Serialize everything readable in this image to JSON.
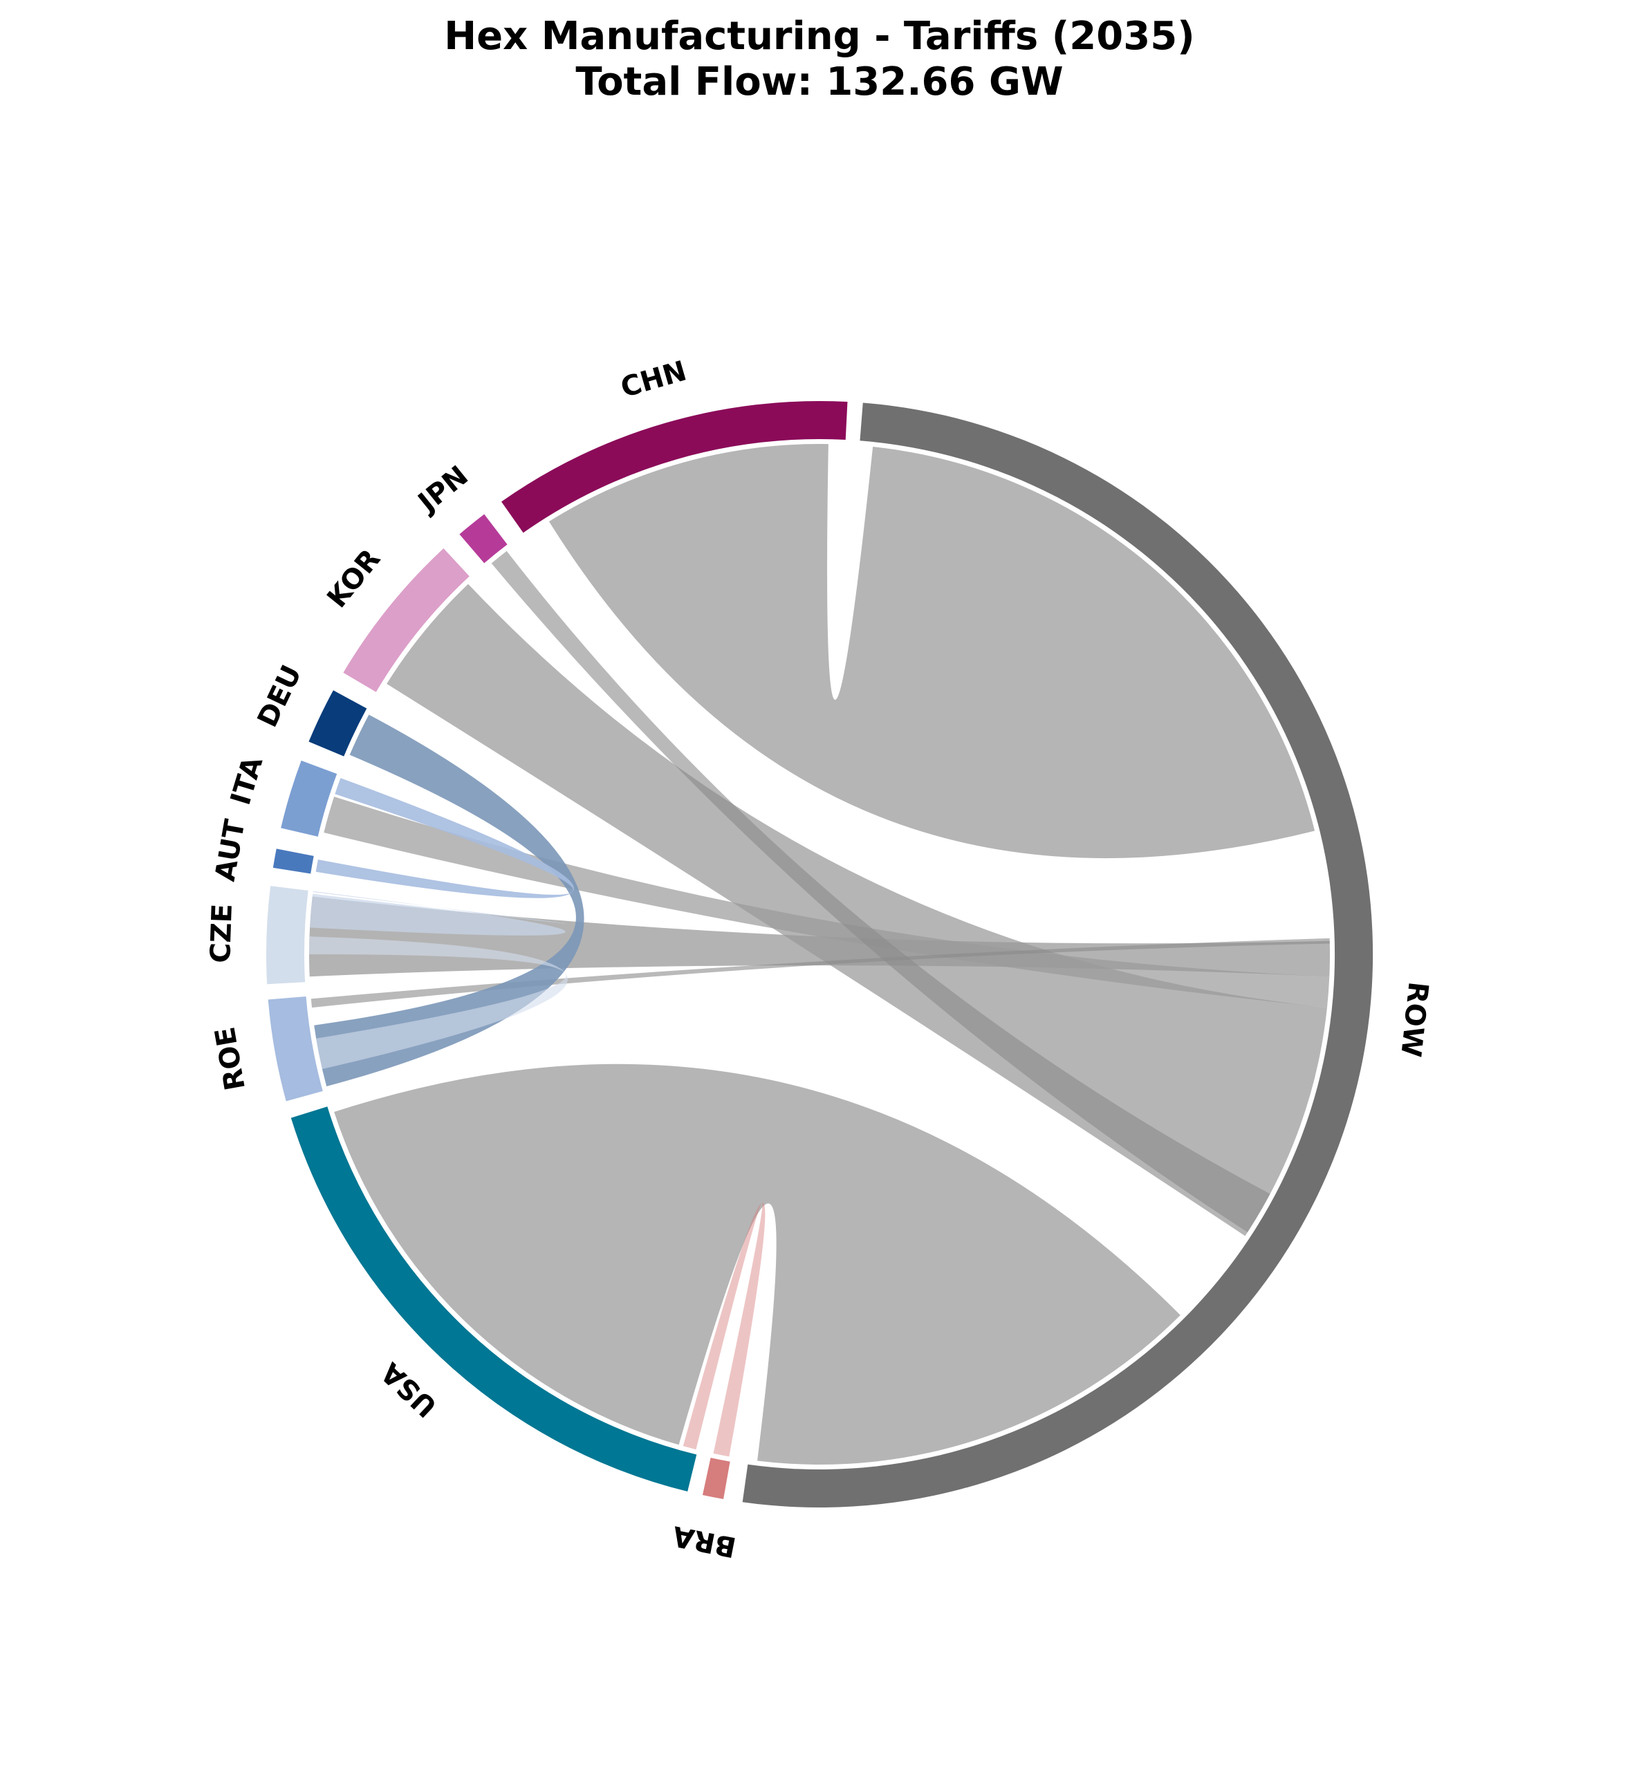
{
  "chart_data": {
    "type": "chord",
    "title": "Hex Manufacturing - Tariffs (2035)",
    "subtitle": "Total Flow: 132.66 GW",
    "nodes": [
      {
        "id": "ROW",
        "label": "ROW",
        "color": "#707070",
        "start_deg": -85.5,
        "end_deg": 98.0
      },
      {
        "id": "BRA",
        "label": "BRA",
        "color": "#d67d7d",
        "start_deg": 100.0,
        "end_deg": 102.2
      },
      {
        "id": "USA",
        "label": "USA",
        "color": "#007794",
        "start_deg": 103.8,
        "end_deg": 162.8
      },
      {
        "id": "ROE",
        "label": "ROE",
        "color": "#a6bce0",
        "start_deg": 164.6,
        "end_deg": 175.3
      },
      {
        "id": "CZE",
        "label": "CZE",
        "color": "#d3deec",
        "start_deg": 176.9,
        "end_deg": 187.1
      },
      {
        "id": "AUT",
        "label": "AUT",
        "color": "#4979bd",
        "start_deg": 189.0,
        "end_deg": 191.0
      },
      {
        "id": "ITA",
        "label": "ITA",
        "color": "#7c9fd2",
        "start_deg": 193.2,
        "end_deg": 200.5
      },
      {
        "id": "DEU",
        "label": "DEU",
        "color": "#083c7b",
        "start_deg": 202.6,
        "end_deg": 208.5
      },
      {
        "id": "KOR",
        "label": "KOR",
        "color": "#dc9fc9",
        "start_deg": 210.6,
        "end_deg": 227.2
      },
      {
        "id": "JPN",
        "label": "JPN",
        "color": "#b63b99",
        "start_deg": 229.4,
        "end_deg": 232.7
      },
      {
        "id": "CHN",
        "label": "CHN",
        "color": "#8b0b59",
        "start_deg": 234.9,
        "end_deg": 272.9
      }
    ],
    "links": [
      {
        "source": "USA",
        "target": "ROW",
        "src_deg": [
          106.0,
          162.0
        ],
        "dst_deg": [
          45.0,
          97.0
        ],
        "color": "#b5b5b5",
        "opacity": 1.0
      },
      {
        "source": "CHN",
        "target": "ROW",
        "src_deg": [
          238.0,
          271.0
        ],
        "dst_deg": [
          -84.0,
          -14.0
        ],
        "color": "#b5b5b5",
        "opacity": 1.0
      },
      {
        "source": "KOR",
        "target": "ROW",
        "src_deg": [
          212.0,
          226.5
        ],
        "dst_deg": [
          6.0,
          33.5
        ],
        "color": "#b5b5b5",
        "opacity": 1.0
      },
      {
        "source": "CZE",
        "target": "ROW",
        "src_deg": [
          177.5,
          186.5
        ],
        "dst_deg": [
          -1.5,
          2.5
        ],
        "color": "#9a9a9a",
        "opacity": 0.75
      },
      {
        "source": "ITA",
        "target": "ROW",
        "src_deg": [
          193.8,
          198.0
        ],
        "dst_deg": [
          2.5,
          6.0
        ],
        "color": "#9a9a9a",
        "opacity": 0.7
      },
      {
        "source": "JPN",
        "target": "ROW",
        "src_deg": [
          230.0,
          232.2
        ],
        "dst_deg": [
          28.0,
          33.0
        ],
        "color": "#8a8a8a",
        "opacity": 0.6
      },
      {
        "source": "ROE",
        "target": "ROW",
        "src_deg": [
          174.0,
          175.0
        ],
        "dst_deg": [
          -1.8,
          -1.2
        ],
        "color": "#8a8a8a",
        "opacity": 0.6
      },
      {
        "source": "DEU",
        "target": "ROE",
        "src_deg": [
          203.0,
          208.0
        ],
        "dst_deg": [
          165.0,
          172.0
        ],
        "color": "#7b97b8",
        "opacity": 0.9
      },
      {
        "source": "AUT",
        "target": "ITA",
        "src_deg": [
          189.3,
          190.7
        ],
        "dst_deg": [
          198.3,
          200.2
        ],
        "color": "#a6bce0",
        "opacity": 0.9
      },
      {
        "source": "ITA",
        "target": "CZE",
        "src_deg": [
          187.0,
          187.1
        ],
        "dst_deg": [
          183.0,
          186.8
        ],
        "color": "#c9d6ea",
        "opacity": 0.7
      },
      {
        "source": "CZE",
        "target": "ROE",
        "src_deg": [
          180.0,
          182.0
        ],
        "dst_deg": [
          167.0,
          170.5
        ],
        "color": "#d3deec",
        "opacity": 0.6
      },
      {
        "source": "USA",
        "target": "BRA",
        "src_deg": [
          104.0,
          105.5
        ],
        "dst_deg": [
          100.2,
          102.0
        ],
        "color": "#d67d7d",
        "opacity": 0.45
      }
    ]
  }
}
